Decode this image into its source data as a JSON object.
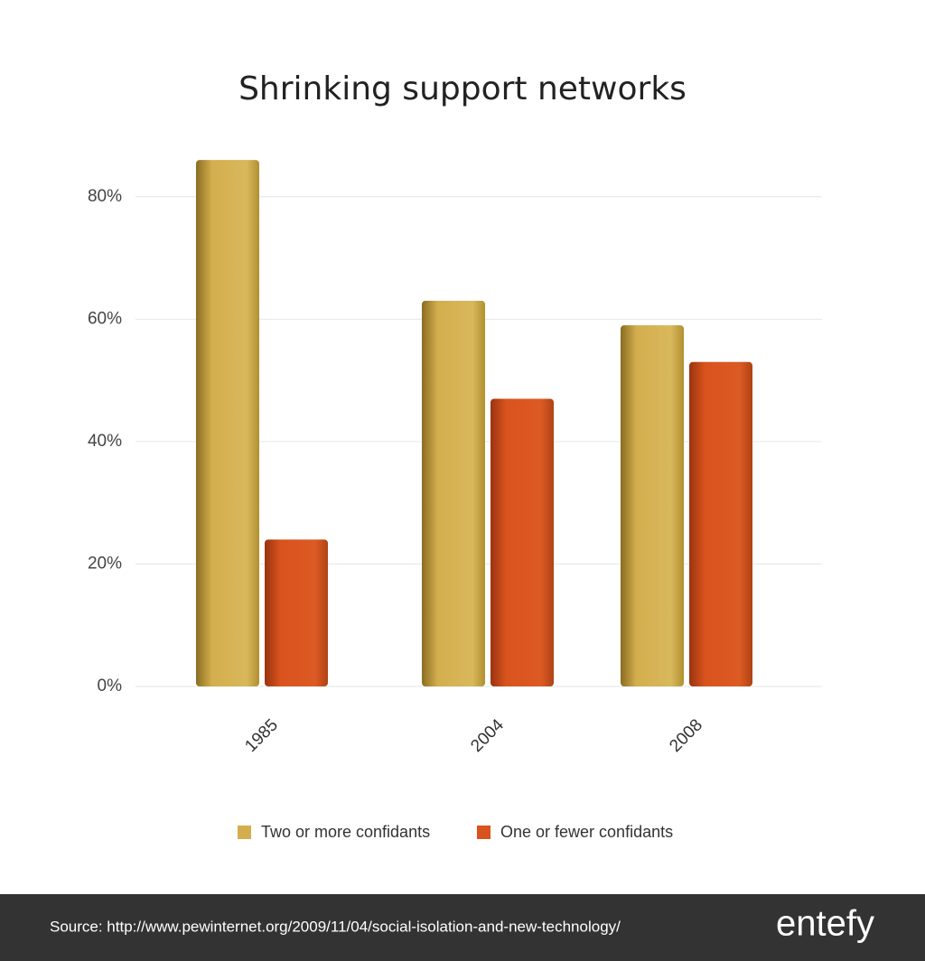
{
  "chart_data": {
    "type": "bar",
    "title": "Shrinking support networks",
    "categories": [
      "1985",
      "2004",
      "2008"
    ],
    "series": [
      {
        "name": "Two or more confidants",
        "color": "#d4ae4e",
        "values": [
          86,
          63,
          59
        ]
      },
      {
        "name": "One or fewer confidants",
        "color": "#d9531e",
        "values": [
          24,
          47,
          53
        ]
      }
    ],
    "ylim": [
      0,
      90
    ],
    "yticks": [
      {
        "value": 0,
        "label": "0%"
      },
      {
        "value": 20,
        "label": "20%"
      },
      {
        "value": 40,
        "label": "40%"
      },
      {
        "value": 60,
        "label": "60%"
      },
      {
        "value": 80,
        "label": "80%"
      }
    ],
    "grid": true
  },
  "footer": {
    "source": "Source: http://www.pewinternet.org/2009/11/04/social-isolation-and-new-technology/",
    "brand": "entefy"
  }
}
